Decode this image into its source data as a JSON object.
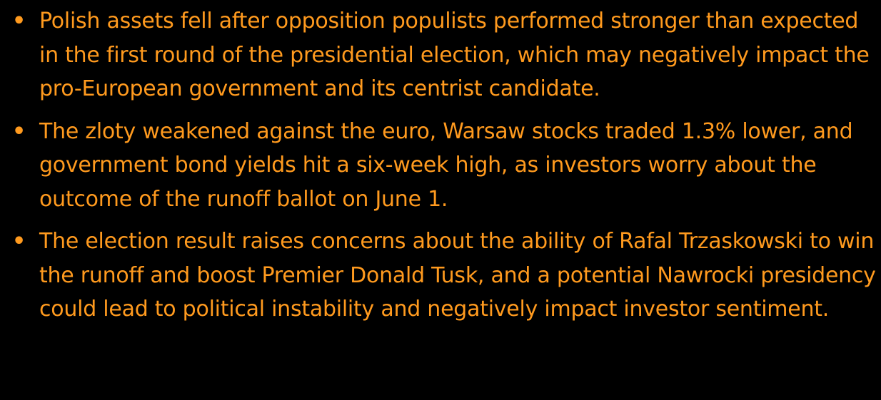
{
  "colors": {
    "background": "#000000",
    "text": "#FF9A1E",
    "bullet": "#FF9A1E"
  },
  "bullet_glyph": "•",
  "bullets": [
    {
      "text": "Polish assets fell after opposition populists performed stronger than expected in the first round of the presidential election, which may negatively impact the pro-European government and its centrist candidate."
    },
    {
      "text": "The zloty weakened against the euro, Warsaw stocks traded 1.3% lower, and government bond yields hit a six-week high, as investors worry about the outcome of the runoff ballot on June 1."
    },
    {
      "text": "The election result raises concerns about the ability of Rafal Trzaskowski to win the runoff and boost Premier Donald Tusk, and a potential Nawrocki presidency could lead to political instability and negatively impact investor sentiment."
    }
  ]
}
